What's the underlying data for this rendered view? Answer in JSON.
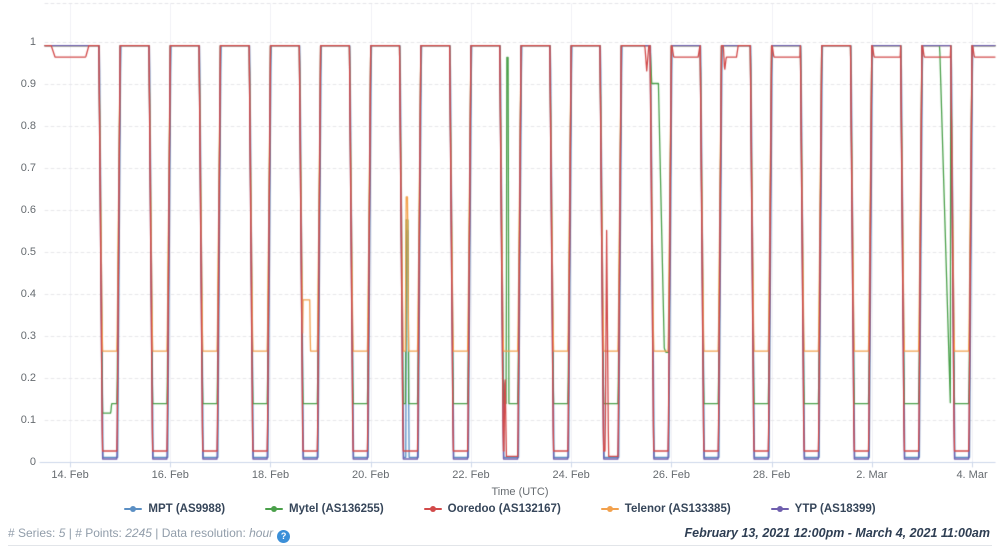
{
  "axes": {
    "x_axis_title": "Time (UTC)",
    "y_ticks": [
      {
        "label": "0",
        "value": 0
      },
      {
        "label": "0.1",
        "value": 0.1
      },
      {
        "label": "0.2",
        "value": 0.2
      },
      {
        "label": "0.3",
        "value": 0.3
      },
      {
        "label": "0.4",
        "value": 0.4
      },
      {
        "label": "0.5",
        "value": 0.5
      },
      {
        "label": "0.6",
        "value": 0.6
      },
      {
        "label": "0.7",
        "value": 0.7
      },
      {
        "label": "0.8",
        "value": 0.8
      },
      {
        "label": "0.9",
        "value": 0.9
      },
      {
        "label": "1",
        "value": 1
      }
    ],
    "x_ticks": [
      {
        "label": "14. Feb",
        "t": 12
      },
      {
        "label": "16. Feb",
        "t": 60
      },
      {
        "label": "18. Feb",
        "t": 108
      },
      {
        "label": "20. Feb",
        "t": 156
      },
      {
        "label": "22. Feb",
        "t": 204
      },
      {
        "label": "24. Feb",
        "t": 252
      },
      {
        "label": "26. Feb",
        "t": 300
      },
      {
        "label": "28. Feb",
        "t": 348
      },
      {
        "label": "2. Mar",
        "t": 396
      },
      {
        "label": "4. Mar",
        "t": 444
      }
    ]
  },
  "legend": {
    "items": [
      {
        "label": "MPT (AS9988)",
        "color": "#5b8fc4"
      },
      {
        "label": "Mytel (AS136255)",
        "color": "#4aa04a"
      },
      {
        "label": "Ooredoo (AS132167)",
        "color": "#d24a4a"
      },
      {
        "label": "Telenor (AS133385)",
        "color": "#f2a14d"
      },
      {
        "label": "YTP (AS18399)",
        "color": "#6f5fae"
      }
    ]
  },
  "footer": {
    "series_label": "# Series:",
    "series_value": "5",
    "sep1": " | ",
    "points_label": "# Points:",
    "points_value": "2245",
    "sep2": " | ",
    "resolution_label": "Data resolution:",
    "resolution_value": "hour",
    "help_icon": "?",
    "date_range": "February 13, 2021 12:00pm - March 4, 2021 11:00am"
  },
  "chart_data": {
    "type": "line",
    "title": "",
    "xlabel": "Time (UTC)",
    "ylabel": "",
    "x_unit": "hours since 2021-02-13 12:00 UTC",
    "x_range": [
      0,
      455
    ],
    "ylim": [
      0,
      1.09
    ],
    "grid": "dashed horizontal 0 to 1 step 0.1, faint vertical at date ticks",
    "legend_position": "bottom center",
    "pattern_note": "All five ASNs sit near 0.99 by day; nightly internet shutdowns repeat every 24h (18 dips) where each series drops to its night_value.",
    "schedule": {
      "first_descent_start": 25.8,
      "descent_hours": 1.7,
      "bottom_hours": 7.0,
      "rise_hours": 1.5,
      "period_hours": 24,
      "dip_count": 18
    },
    "series": [
      {
        "name": "MPT (AS9988)",
        "color": "#5b8fc4",
        "day_value": 0.99,
        "night_value": 0.01,
        "t_shift": 0.3,
        "overrides": [
          [
            [
              172.8,
              0.01
            ],
            [
              173.1,
              0.55
            ],
            [
              173.9,
              0.55
            ],
            [
              174.3,
              0.01
            ]
          ]
        ]
      },
      {
        "name": "Mytel (AS136255)",
        "color": "#4aa04a",
        "day_value": 0.99,
        "night_value": 0.138,
        "t_shift": 0,
        "overrides": [
          [
            [
              27.5,
              0.115
            ],
            [
              31.5,
              0.115
            ],
            [
              31.9,
              0.138
            ],
            [
              34.5,
              0.138
            ]
          ],
          [
            [
              172.7,
              0.138
            ],
            [
              173.0,
              0.575
            ],
            [
              173.8,
              0.575
            ],
            [
              174.2,
              0.138
            ]
          ],
          [
            [
              220.9,
              0.138
            ],
            [
              221.2,
              0.962
            ],
            [
              221.8,
              0.962
            ],
            [
              222.2,
              0.138
            ]
          ],
          [
            [
              289.8,
              0.99
            ],
            [
              290.6,
              0.9
            ],
            [
              293.8,
              0.9
            ],
            [
              296.6,
              0.27
            ],
            [
              297.4,
              0.26
            ],
            [
              298.9,
              0.26
            ]
          ],
          [
            [
              428.5,
              0.99
            ],
            [
              433.6,
              0.14
            ]
          ]
        ]
      },
      {
        "name": "Ooredoo (AS132167)",
        "color": "#d24a4a",
        "day_value": 0.99,
        "night_value": 0.025,
        "t_shift": 0,
        "overrides": [
          [
            [
              0,
              0.99
            ],
            [
              3,
              0.99
            ],
            [
              4.8,
              0.963
            ],
            [
              19.5,
              0.963
            ],
            [
              21,
              0.99
            ]
          ],
          [
            [
              219.8,
              0.025
            ],
            [
              220.3,
              0.225
            ],
            [
              221.0,
              0.012
            ],
            [
              226.5,
              0.012
            ]
          ],
          [
            [
              268.3,
              0.025
            ],
            [
              269.0,
              0.55
            ],
            [
              269.9,
              0.012
            ],
            [
              274.5,
              0.012
            ]
          ],
          [
            [
              287.3,
              0.99
            ],
            [
              288.2,
              0.93
            ],
            [
              289.1,
              0.985
            ]
          ],
          [
            [
              300.3,
              0.99
            ],
            [
              301.1,
              0.963
            ],
            [
              312.8,
              0.963
            ],
            [
              313.7,
              0.99
            ]
          ],
          [
            [
              324.3,
              0.99
            ],
            [
              324.9,
              0.99
            ],
            [
              325.5,
              0.93
            ],
            [
              326.3,
              0.963
            ],
            [
              331.2,
              0.963
            ],
            [
              332.0,
              0.99
            ]
          ],
          [
            [
              348.3,
              0.99
            ],
            [
              349.1,
              0.963
            ],
            [
              361.7,
              0.963
            ]
          ],
          [
            [
              396.3,
              0.99
            ],
            [
              397.1,
              0.963
            ],
            [
              409.7,
              0.963
            ]
          ],
          [
            [
              420.3,
              0.99
            ],
            [
              421.1,
              0.963
            ],
            [
              433.7,
              0.963
            ]
          ],
          [
            [
              444.3,
              0.99
            ],
            [
              445.1,
              0.963
            ],
            [
              455,
              0.963
            ]
          ]
        ]
      },
      {
        "name": "Telenor (AS133385)",
        "color": "#f2a14d",
        "day_value": 0.99,
        "night_value": 0.263,
        "t_shift": 0,
        "overrides": [
          [
            [
              123.5,
              0.385
            ],
            [
              126.8,
              0.385
            ],
            [
              127.1,
              0.263
            ],
            [
              130.5,
              0.263
            ]
          ],
          [
            [
              172.6,
              0.263
            ],
            [
              172.9,
              0.63
            ],
            [
              173.7,
              0.63
            ],
            [
              174.1,
              0.263
            ]
          ]
        ]
      },
      {
        "name": "YTP (AS18399)",
        "color": "#6f5fae",
        "day_value": 0.99,
        "night_value": 0.006,
        "t_shift": 0,
        "overrides": []
      }
    ],
    "draw_order": [
      0,
      1,
      3,
      4,
      2
    ],
    "colors": {
      "grid": "#e7e7ea",
      "grid_vertical": "#f0f0f6",
      "plot_top_border": "#e4e4e8",
      "axis_line": "#cdd7ea",
      "tick_text": "#666b70"
    }
  }
}
